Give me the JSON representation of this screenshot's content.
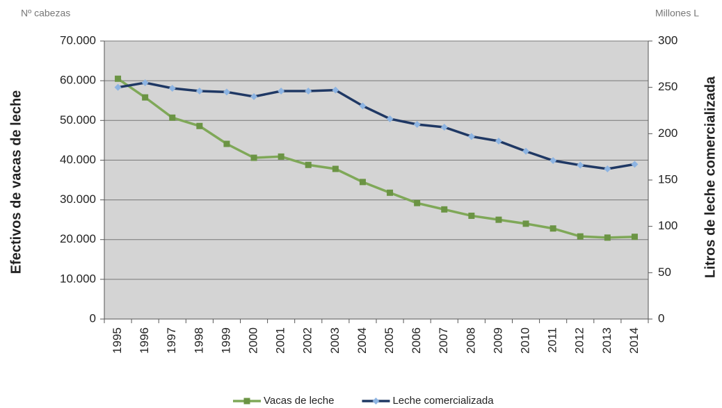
{
  "chart_data": {
    "type": "line",
    "left_unit": "Nº cabezas",
    "right_unit": "Millones L",
    "y_label": "Efectivos  de vacas  de leche",
    "y2_label": "Litros de leche comercializada",
    "categories": [
      "1995",
      "1996",
      "1997",
      "1998",
      "1999",
      "2000",
      "2001",
      "2002",
      "2003",
      "2004",
      "2005",
      "2006",
      "2007",
      "2008",
      "2009",
      "2010",
      "2011",
      "2012",
      "2013",
      "2014"
    ],
    "series": [
      {
        "name": "Vacas de leche",
        "color": "#7fa858",
        "marker_color": "#6b9444",
        "marker": "square",
        "values": [
          60500,
          55800,
          50700,
          48600,
          44100,
          40600,
          40900,
          38800,
          37800,
          34500,
          31800,
          29200,
          27600,
          26000,
          25000,
          24000,
          22800,
          20800,
          20500,
          20700
        ]
      },
      {
        "name": "Leche comercializada",
        "color": "#1f3864",
        "marker_color": "#8db4e2",
        "marker": "diamond",
        "axis": "y2",
        "values": [
          250,
          255,
          249,
          246,
          245,
          240,
          246,
          246,
          247,
          230,
          216,
          210,
          207,
          197,
          192,
          181,
          171,
          166,
          162,
          167
        ]
      }
    ],
    "ylim": [
      0,
      70000
    ],
    "yticks": [
      0,
      {
        "value": 10000,
        "label": "10.000"
      },
      {
        "value": 20000,
        "label": "20.000"
      },
      {
        "value": 30000,
        "label": "30.000"
      },
      {
        "value": 40000,
        "label": "40.000"
      },
      {
        "value": 50000,
        "label": "50.000"
      },
      {
        "value": 60000,
        "label": "60.000"
      },
      {
        "value": 70000,
        "label": "70.000"
      }
    ],
    "y2lim": [
      0,
      300
    ],
    "y2ticks": [
      0,
      50,
      100,
      150,
      200,
      250,
      300
    ],
    "grid": true,
    "legend": "bottom"
  }
}
